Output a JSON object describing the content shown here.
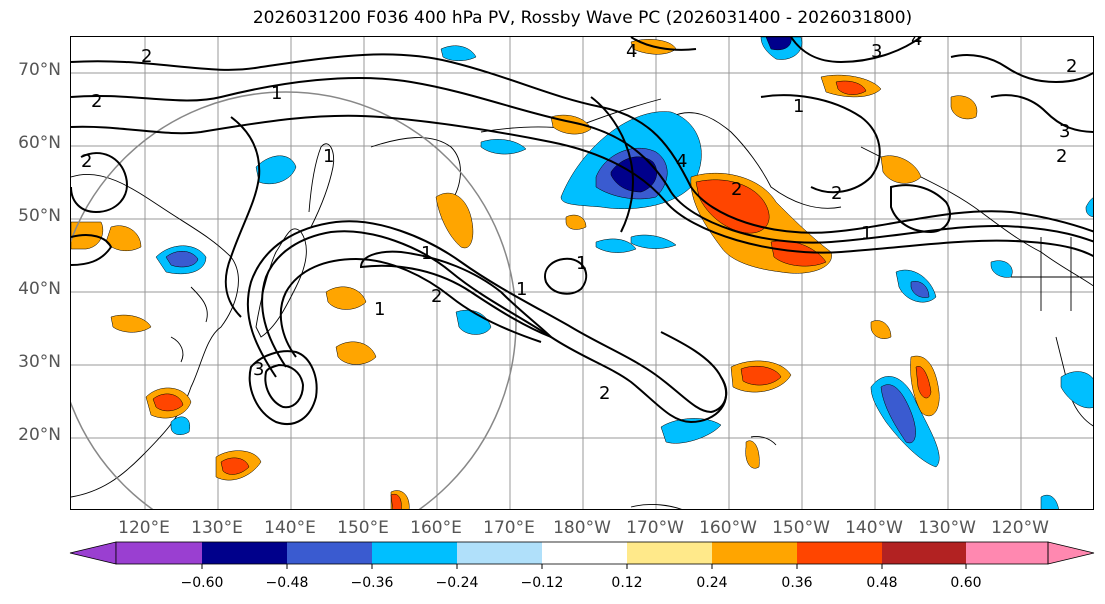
{
  "title": "2026031200 F036 400 hPa PV, Rossby Wave PC (2026031400 - 2026031800)",
  "latitude_labels": [
    "70°N",
    "60°N",
    "50°N",
    "40°N",
    "30°N",
    "20°N"
  ],
  "longitude_labels": [
    "120°E",
    "130°E",
    "140°E",
    "150°E",
    "160°E",
    "170°E",
    "180°W",
    "170°W",
    "160°W",
    "150°W",
    "140°W",
    "130°W",
    "120°W"
  ],
  "contour_labels": [
    "1",
    "2",
    "3",
    "4"
  ],
  "colorbar": {
    "ticks": [
      "−0.60",
      "−0.48",
      "−0.36",
      "−0.24",
      "−0.12",
      "0.12",
      "0.24",
      "0.36",
      "0.48",
      "0.60"
    ],
    "colors": [
      "#9a3fd1",
      "#00008b",
      "#3a5bd0",
      "#00bfff",
      "#b0e0fa",
      "#ffffff",
      "#ffe98a",
      "#ffa500",
      "#ff4500",
      "#b22222",
      "#ff88b0"
    ]
  },
  "colors": {
    "strong_negative": "#00008b",
    "negative": "#3a5bd0",
    "weak_negative": "#00bfff",
    "faint_negative": "#b0e0fa",
    "faint_positive": "#ffe98a",
    "weak_positive": "#ffa500",
    "positive": "#ff4500",
    "strong_positive": "#b22222"
  }
}
